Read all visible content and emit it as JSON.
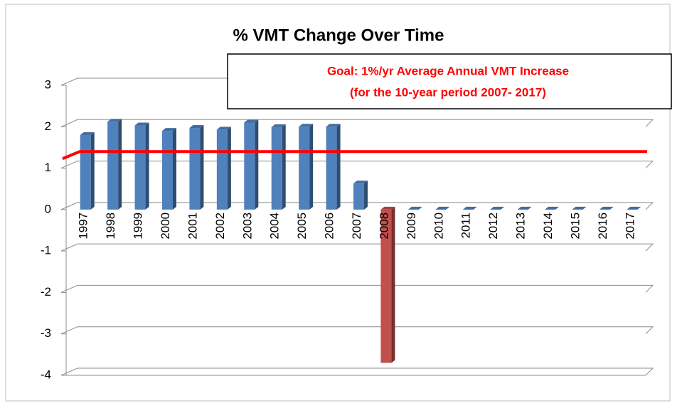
{
  "chart_data": {
    "type": "bar",
    "title": "% VMT Change Over Time",
    "annotation": [
      "Goal: 1%/yr Average Annual VMT Increase",
      "(for the 10-year period 2007- 2017)"
    ],
    "categories": [
      "1997",
      "1998",
      "1999",
      "2000",
      "2001",
      "2002",
      "2003",
      "2004",
      "2005",
      "2006",
      "2007",
      "2008",
      "2009",
      "2010",
      "2011",
      "2012",
      "2013",
      "2014",
      "2015",
      "2016",
      "2017"
    ],
    "values": [
      1.8,
      2.12,
      2.03,
      1.9,
      1.97,
      1.93,
      2.1,
      1.99,
      2.0,
      2.0,
      0.63,
      -3.7,
      0,
      0,
      0,
      0,
      0,
      0,
      0,
      0,
      0
    ],
    "colors": [
      "#4f81bd",
      "#4f81bd",
      "#4f81bd",
      "#4f81bd",
      "#4f81bd",
      "#4f81bd",
      "#4f81bd",
      "#4f81bd",
      "#4f81bd",
      "#4f81bd",
      "#4f81bd",
      "#c0504d",
      "#4f81bd",
      "#4f81bd",
      "#4f81bd",
      "#4f81bd",
      "#4f81bd",
      "#4f81bd",
      "#4f81bd",
      "#4f81bd",
      "#4f81bd"
    ],
    "goal_line": {
      "value": 1.4,
      "color": "#ff0000"
    },
    "ylim": [
      -4,
      3
    ],
    "yticks": [
      -4,
      -3,
      -2,
      -1,
      0,
      1,
      2,
      3
    ],
    "grid": true
  }
}
